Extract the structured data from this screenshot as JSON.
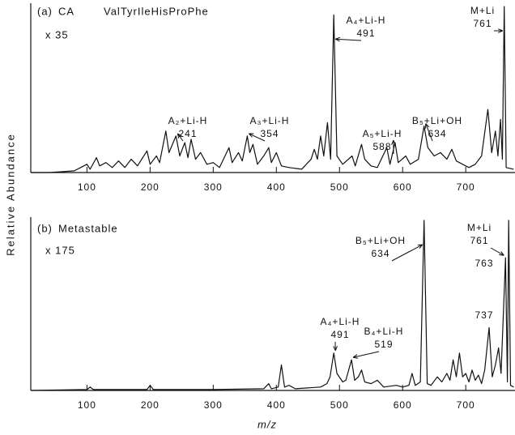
{
  "y_axis_label": "Relative Abundance",
  "x_axis_label": "m/z",
  "chart_data": [
    {
      "type": "line",
      "panel_label": "(a)",
      "title": "CA",
      "subtitle": "ValTyrIleHisProPhe",
      "scale_label": "x 35",
      "color": "#111111",
      "x": [
        11,
        40,
        60,
        80,
        90,
        100,
        105,
        115,
        120,
        130,
        140,
        150,
        160,
        170,
        180,
        195,
        200,
        210,
        215,
        225,
        230,
        241,
        247,
        255,
        260,
        265,
        272,
        280,
        290,
        300,
        310,
        325,
        330,
        340,
        346,
        354,
        358,
        363,
        370,
        380,
        388,
        392,
        400,
        408,
        420,
        440,
        455,
        460,
        465,
        470,
        475,
        481,
        486,
        491,
        496,
        505,
        520,
        525,
        535,
        540,
        550,
        560,
        575,
        580,
        588,
        593,
        605,
        612,
        625,
        634,
        640,
        650,
        660,
        670,
        678,
        685,
        695,
        705,
        715,
        725,
        735,
        741,
        747,
        751,
        755,
        758,
        761,
        764,
        776
      ],
      "values": [
        0,
        0,
        0.5,
        1,
        3,
        5,
        2,
        9,
        4,
        6,
        3,
        7,
        3,
        8,
        4,
        13,
        5,
        10,
        6,
        25,
        12,
        22,
        10,
        18,
        9,
        20,
        8,
        12,
        5,
        6,
        3,
        15,
        6,
        12,
        7,
        22,
        12,
        17,
        5,
        10,
        15,
        6,
        12,
        4,
        3,
        2,
        8,
        14,
        8,
        22,
        10,
        30,
        8,
        95,
        10,
        5,
        10,
        4,
        17,
        8,
        4,
        3,
        15,
        5,
        18,
        6,
        10,
        5,
        8,
        28,
        15,
        10,
        12,
        8,
        14,
        7,
        5,
        3,
        5,
        10,
        38,
        12,
        25,
        10,
        32,
        8,
        100,
        3,
        2
      ],
      "xlim": [
        11,
        778
      ],
      "xticks": [
        100,
        200,
        300,
        400,
        500,
        600,
        700
      ],
      "ylim": [
        0,
        100
      ],
      "annotations": [
        {
          "text": "A₂+Li-H",
          "mz": 241
        },
        {
          "text": "A₃+Li-H",
          "mz": 354
        },
        {
          "text": "A₄+Li-H",
          "mz": 491
        },
        {
          "text": "A₅+Li-H",
          "mz": 588
        },
        {
          "text": "B₅+Li+OH",
          "mz": 634
        },
        {
          "text": "M+Li",
          "mz": 761
        }
      ]
    },
    {
      "type": "line",
      "panel_label": "(b)",
      "title": "Metastable",
      "scale_label": "x 175",
      "color": "#111111",
      "x": [
        11,
        100,
        105,
        110,
        195,
        200,
        205,
        300,
        380,
        388,
        392,
        403,
        408,
        413,
        420,
        430,
        470,
        480,
        485,
        491,
        496,
        505,
        510,
        519,
        524,
        530,
        535,
        540,
        550,
        560,
        570,
        590,
        600,
        610,
        615,
        620,
        628,
        634,
        639,
        645,
        655,
        662,
        670,
        675,
        680,
        685,
        690,
        695,
        700,
        705,
        710,
        715,
        720,
        725,
        730,
        737,
        742,
        747,
        752,
        756,
        763,
        766,
        768,
        771,
        776
      ],
      "values": [
        0,
        0.5,
        2,
        0.5,
        0.5,
        3,
        0.5,
        0.5,
        1,
        4,
        1,
        2,
        15,
        2,
        3,
        1,
        2,
        4,
        8,
        22,
        10,
        5,
        6,
        18,
        6,
        8,
        12,
        5,
        4,
        6,
        2,
        3,
        2,
        3,
        10,
        3,
        5,
        100,
        4,
        3,
        8,
        5,
        10,
        6,
        18,
        8,
        22,
        8,
        10,
        5,
        12,
        6,
        9,
        4,
        12,
        37,
        8,
        15,
        25,
        10,
        78,
        5,
        100,
        3,
        2
      ],
      "xlim": [
        11,
        778
      ],
      "xticks": [
        100,
        200,
        300,
        400,
        500,
        600,
        700
      ],
      "ylim": [
        0,
        100
      ],
      "annotations": [
        {
          "text": "B₅+Li+OH",
          "mz": 634
        },
        {
          "text": "M+Li",
          "mz": 761
        },
        {
          "mz": 763
        },
        {
          "mz": 737
        },
        {
          "text": "A₄+Li-H",
          "mz": 491
        },
        {
          "text": "B₄+Li-H",
          "mz": 519
        }
      ]
    }
  ]
}
